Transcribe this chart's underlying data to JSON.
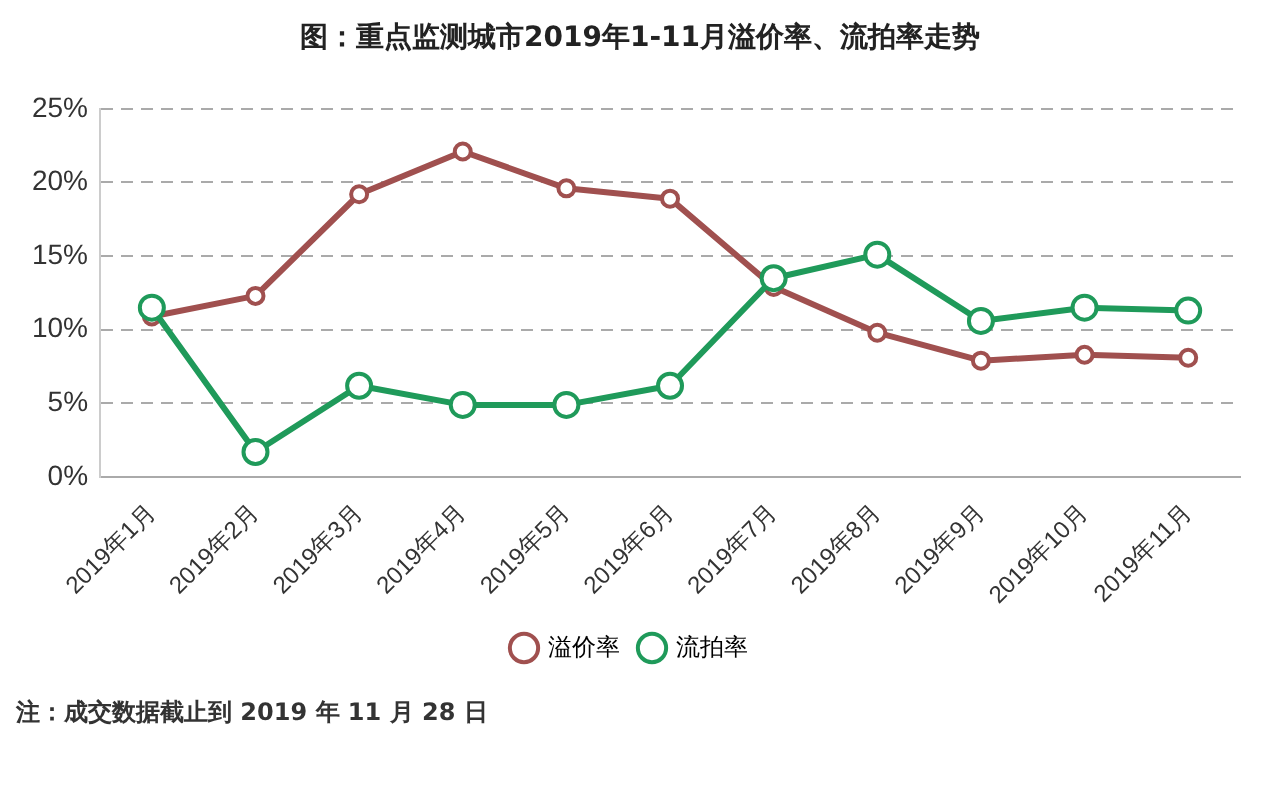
{
  "chart_data": {
    "type": "line",
    "title": "图：重点监测城市2019年1-11月溢价率、流拍率走势",
    "categories": [
      "2019年1月",
      "2019年2月",
      "2019年3月",
      "2019年4月",
      "2019年5月",
      "2019年6月",
      "2019年7月",
      "2019年8月",
      "2019年9月",
      "2019年10月",
      "2019年11月"
    ],
    "series": [
      {
        "name": "溢价率",
        "color": "#a0504f",
        "values": [
          10.9,
          12.3,
          19.2,
          22.1,
          19.6,
          18.9,
          12.9,
          9.8,
          7.9,
          8.3,
          8.1
        ]
      },
      {
        "name": "流拍率",
        "color": "#1f9a5a",
        "values": [
          11.5,
          1.7,
          6.2,
          4.9,
          4.9,
          6.2,
          13.5,
          15.1,
          10.6,
          11.5,
          11.3
        ]
      }
    ],
    "ylim": [
      0,
      25
    ],
    "yticks": [
      {
        "value": 0,
        "label": "0%"
      },
      {
        "value": 5,
        "label": "5%"
      },
      {
        "value": 10,
        "label": "10%"
      },
      {
        "value": 15,
        "label": "15%"
      },
      {
        "value": 20,
        "label": "20%"
      },
      {
        "value": 25,
        "label": "25%"
      }
    ],
    "grid": "y",
    "legend": "bottom",
    "marker": "circle",
    "line_style": "solid",
    "annotations": [
      "注：成交数据截止到 2019 年 11 月 28 日"
    ]
  }
}
